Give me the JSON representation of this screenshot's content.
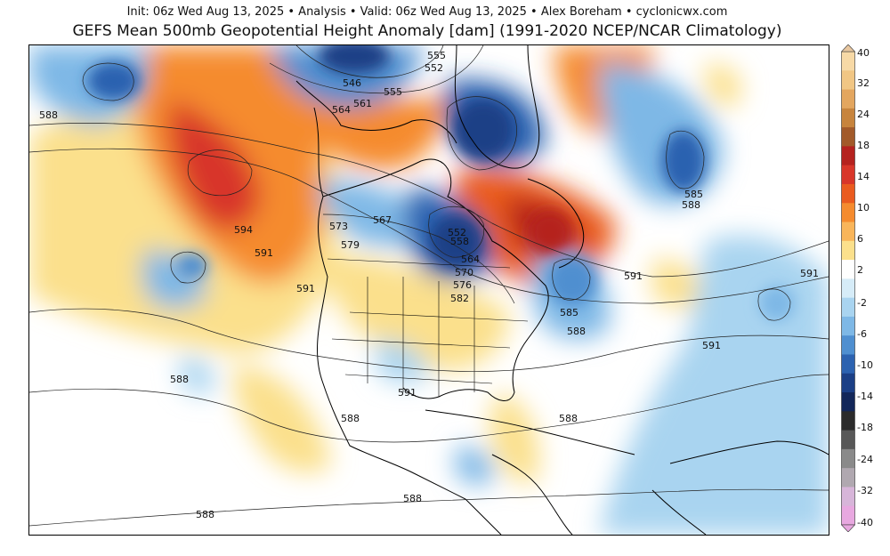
{
  "header": {
    "line": "Init: 06z Wed Aug 13, 2025 • Analysis • Valid: 06z Wed Aug 13, 2025 • Alex Boreham • cyclonicwx.com",
    "title": "GEFS Mean 500mb Geopotential Height Anomaly [dam] (1991-2020 NCEP/NCAR Climatology)"
  },
  "map": {
    "contour_labels": [
      "555",
      "552",
      "546",
      "555",
      "561",
      "564",
      "588",
      "594",
      "591",
      "567",
      "573",
      "579",
      "552",
      "558",
      "564",
      "570",
      "576",
      "582",
      "591",
      "585",
      "588",
      "591",
      "585",
      "588",
      "591",
      "591",
      "588",
      "591",
      "588",
      "588"
    ]
  },
  "colorbar": {
    "ticks": [
      "40",
      "32",
      "24",
      "18",
      "14",
      "10",
      "6",
      "2",
      "-2",
      "-6",
      "-10",
      "-14",
      "-18",
      "-24",
      "-32",
      "-40"
    ],
    "colors": [
      "#f7d9a6",
      "#f1c684",
      "#e3a65f",
      "#c7843d",
      "#a25a2a",
      "#b5221f",
      "#d8362a",
      "#ea5b1f",
      "#f58b2e",
      "#f9b55a",
      "#fbe08c",
      "#ffffff",
      "#d6ecf8",
      "#a9d4f0",
      "#7eb8e6",
      "#4f8fd0",
      "#2c62b0",
      "#1b3f86",
      "#13275a",
      "#2b2b2b",
      "#585858",
      "#8a8a8a",
      "#b0a8b0",
      "#d7b5d9",
      "#e8a8e0"
    ]
  }
}
